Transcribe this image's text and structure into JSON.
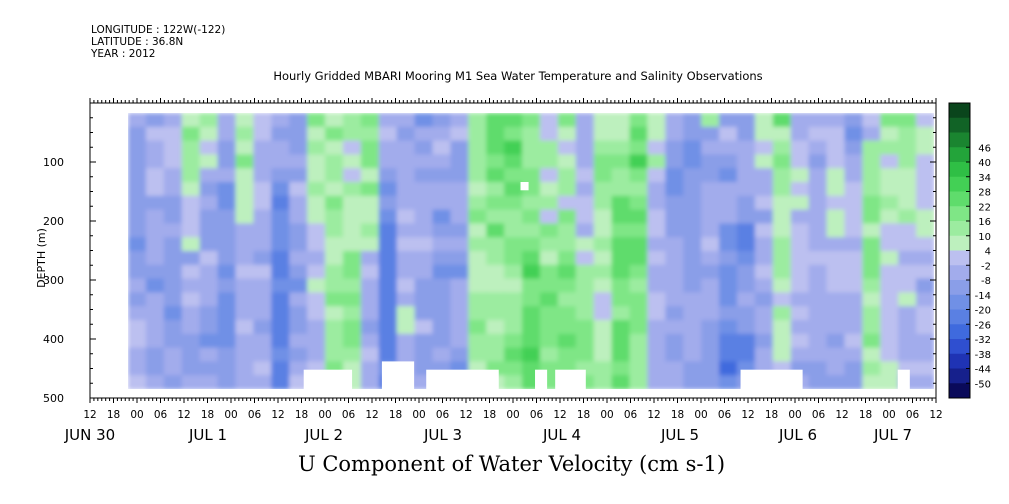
{
  "header": {
    "longitude": "LONGITUDE : 122W(-122)",
    "latitude": "LATITUDE : 36.8N",
    "year": "YEAR : 2012"
  },
  "chart_data": {
    "type": "heatmap",
    "title": "Hourly Gridded MBARI Mooring M1 Sea Water Temperature and Salinity Observations",
    "xlabel": "U Component of Water Velocity (cm s-1)",
    "ylabel": "DEPTH (m)",
    "x_range": [
      "2012-06-30T12:00",
      "2012-07-07T12:00"
    ],
    "y_range": [
      0,
      500
    ],
    "y_inverted": true,
    "y_ticks": [
      100,
      200,
      300,
      400,
      500
    ],
    "x_hour_ticks": [
      "12",
      "18",
      "00",
      "06",
      "12",
      "18",
      "00",
      "06",
      "12",
      "18",
      "00",
      "06",
      "12",
      "18",
      "00",
      "06",
      "12",
      "18",
      "00",
      "06",
      "12",
      "18",
      "00",
      "06",
      "12",
      "18",
      "00",
      "06",
      "12",
      "18",
      "00",
      "06",
      "12",
      "18",
      "00",
      "06",
      "12"
    ],
    "x_day_labels": [
      "JUN 30",
      "JUL 1",
      "JUL 2",
      "JUL 3",
      "JUL 4",
      "JUL 5",
      "JUL 6",
      "JUL 7"
    ],
    "colorbar": {
      "levels": [
        -50,
        -44,
        -38,
        -32,
        -26,
        -20,
        -14,
        -8,
        -2,
        4,
        10,
        16,
        22,
        28,
        34,
        40,
        46
      ],
      "colors": [
        "#0a0a5a",
        "#16208c",
        "#1f33b4",
        "#2f4fd0",
        "#3f6ade",
        "#5a80e3",
        "#7090e6",
        "#8a9ee8",
        "#a2acec",
        "#bcc0f0",
        "#bdf0be",
        "#9ceca0",
        "#7fe686",
        "#5fdc6c",
        "#43d055",
        "#2fbf45",
        "#23a43a",
        "#1a8530",
        "#116326",
        "#0a451c"
      ]
    },
    "series": [
      {
        "values": [
          [
            -3,
            -11,
            -3,
            5,
            15,
            -8,
            8,
            1,
            -7,
            -11,
            17,
            9,
            14,
            19,
            -3,
            -7,
            -17,
            -9,
            -7,
            11,
            22,
            24,
            20,
            3,
            16,
            -5,
            7,
            9,
            19,
            7,
            -5,
            -13,
            14,
            -10,
            -12,
            7,
            25,
            -3,
            -7,
            -5,
            -11,
            3,
            17,
            21,
            3
          ],
          [
            -13,
            -1,
            2,
            19,
            4,
            -5,
            14,
            3,
            -14,
            -10,
            9,
            17,
            14,
            10,
            -2,
            -10,
            -4,
            -7,
            -1,
            10,
            23,
            18,
            11,
            3,
            8,
            -3,
            8,
            6,
            23,
            5,
            -6,
            -13,
            -14,
            -1,
            -14,
            6,
            8,
            -7,
            0,
            1,
            -17,
            -3,
            4,
            14,
            6
          ],
          [
            -13,
            -7,
            2,
            11,
            -2,
            -11,
            4,
            -6,
            -8,
            -14,
            12,
            4,
            3,
            19,
            -5,
            -5,
            -11,
            2,
            -10,
            11,
            25,
            29,
            12,
            11,
            3,
            -6,
            11,
            11,
            17,
            3,
            -10,
            -20,
            -6,
            -7,
            -5,
            3,
            14,
            3,
            -8,
            3,
            -11,
            10,
            15,
            13,
            6
          ],
          [
            -12,
            -5,
            2,
            13,
            8,
            -12,
            18,
            -6,
            -4,
            -5,
            7,
            11,
            5,
            16,
            -6,
            -8,
            -7,
            -5,
            -13,
            14,
            18,
            26,
            12,
            12,
            4,
            -4,
            16,
            18,
            30,
            11,
            -13,
            -18,
            -14,
            -12,
            -3,
            6,
            16,
            -1,
            -13,
            3,
            -8,
            14,
            2,
            11,
            1
          ],
          [
            -14,
            -2,
            -7,
            12,
            -7,
            -8,
            5,
            -7,
            -11,
            -10,
            6,
            10,
            1,
            7,
            -11,
            -6,
            -13,
            -10,
            -10,
            14,
            25,
            18,
            18,
            3,
            11,
            2,
            21,
            15,
            19,
            -1,
            -18,
            -13,
            -9,
            -18,
            -8,
            -5,
            15,
            6,
            -8,
            6,
            -6,
            15,
            9,
            9,
            -1
          ],
          [
            -13,
            0,
            -6,
            5,
            -10,
            -17,
            5,
            -1,
            -19,
            -2,
            11,
            4,
            13,
            18,
            -17,
            -8,
            -8,
            -4,
            -4,
            8,
            13,
            22,
            20,
            8,
            12,
            -4,
            10,
            12,
            14,
            -8,
            -16,
            -13,
            -7,
            -8,
            -5,
            -4,
            10,
            1,
            -7,
            9,
            1,
            11,
            4,
            4,
            3
          ],
          [
            -14,
            -11,
            -11,
            3,
            -6,
            -16,
            7,
            3,
            -23,
            -6,
            9,
            17,
            9,
            4,
            -14,
            -5,
            -4,
            -5,
            -5,
            11,
            19,
            17,
            13,
            14,
            3,
            1,
            15,
            22,
            21,
            -5,
            -12,
            -14,
            -3,
            -3,
            -9,
            0,
            5,
            7,
            -3,
            3,
            -2,
            17,
            11,
            8,
            3
          ],
          [
            -12,
            -3,
            -9,
            3,
            -11,
            -12,
            6,
            -4,
            -20,
            -5,
            6,
            11,
            7,
            4,
            -15,
            -1,
            -4,
            -16,
            -6,
            19,
            13,
            12,
            19,
            3,
            16,
            3,
            9,
            23,
            25,
            1,
            -9,
            -10,
            -4,
            -8,
            -14,
            -11,
            9,
            -7,
            -8,
            5,
            -1,
            21,
            7,
            10,
            7
          ],
          [
            -13,
            -3,
            -8,
            0,
            -9,
            -13,
            -3,
            -3,
            -17,
            -9,
            3,
            14,
            7,
            10,
            -21,
            -5,
            -7,
            -14,
            -14,
            9,
            22,
            15,
            15,
            16,
            15,
            -3,
            8,
            18,
            20,
            -1,
            -10,
            -10,
            -3,
            -15,
            -21,
            -1,
            6,
            -1,
            -5,
            9,
            -1,
            9,
            -1,
            3,
            7
          ],
          [
            -15,
            -8,
            -9,
            7,
            -11,
            -11,
            -7,
            -6,
            -18,
            -14,
            2,
            9,
            5,
            4,
            -24,
            -2,
            2,
            -8,
            -4,
            15,
            11,
            20,
            17,
            11,
            13,
            5,
            12,
            24,
            25,
            -4,
            -4,
            -12,
            2,
            -17,
            -22,
            -4,
            12,
            3,
            -8,
            -3,
            -5,
            19,
            -2,
            0,
            -1
          ],
          [
            -9,
            -7,
            -11,
            -10,
            -2,
            -14,
            -4,
            -11,
            -24,
            -8,
            -6,
            9,
            16,
            -3,
            -25,
            -8,
            -5,
            -11,
            -12,
            8,
            13,
            19,
            26,
            7,
            18,
            3,
            6,
            27,
            25,
            -2,
            -7,
            -11,
            -4,
            -11,
            -17,
            -5,
            11,
            2,
            -2,
            -2,
            -2,
            17,
            5,
            -6,
            -5
          ],
          [
            -9,
            -13,
            -13,
            0,
            -8,
            -19,
            1,
            1,
            -25,
            -11,
            2,
            12,
            18,
            0,
            -26,
            -8,
            -4,
            -19,
            -15,
            4,
            7,
            12,
            28,
            18,
            24,
            10,
            12,
            23,
            19,
            -3,
            -7,
            -11,
            -10,
            -16,
            -10,
            0,
            14,
            2,
            -4,
            0,
            1,
            16,
            3,
            0,
            -2
          ],
          [
            -5,
            -17,
            -9,
            -8,
            -8,
            -10,
            -3,
            -4,
            -19,
            -15,
            5,
            10,
            11,
            -8,
            -24,
            -2,
            -10,
            -9,
            -7,
            8,
            8,
            7,
            20,
            18,
            17,
            14,
            6,
            18,
            14,
            -3,
            -8,
            -10,
            -8,
            -17,
            -14,
            -3,
            9,
            1,
            -3,
            -1,
            -1,
            10,
            2,
            -1,
            -11
          ],
          [
            -9,
            -8,
            -12,
            -2,
            -7,
            -17,
            -7,
            -4,
            -22,
            -5,
            1,
            18,
            17,
            -8,
            -24,
            -3,
            -9,
            -10,
            -8,
            14,
            13,
            15,
            19,
            23,
            12,
            10,
            3,
            16,
            19,
            0,
            -6,
            -7,
            -7,
            -20,
            -8,
            -10,
            3,
            -5,
            -5,
            -3,
            -7,
            7,
            -2,
            5,
            -8
          ],
          [
            -3,
            -5,
            -15,
            -8,
            -9,
            -18,
            -5,
            -6,
            -25,
            -13,
            2,
            7,
            12,
            -6,
            -21,
            4,
            -12,
            -13,
            -8,
            15,
            11,
            15,
            25,
            21,
            21,
            13,
            0,
            14,
            16,
            -2,
            -9,
            -8,
            -5,
            -14,
            -13,
            -5,
            11,
            0,
            -3,
            -6,
            -3,
            12,
            0,
            -5,
            -2
          ],
          [
            -1,
            -8,
            -14,
            -4,
            -9,
            -15,
            -2,
            -11,
            -23,
            -14,
            -4,
            14,
            17,
            -9,
            -22,
            5,
            -1,
            -13,
            -6,
            17,
            7,
            15,
            25,
            16,
            19,
            17,
            8,
            23,
            19,
            -3,
            -7,
            -7,
            -11,
            -16,
            -10,
            -4,
            8,
            -4,
            -4,
            -6,
            -4,
            11,
            2,
            -7,
            -1
          ],
          [
            2,
            -5,
            -14,
            -9,
            -15,
            -18,
            -3,
            -6,
            -22,
            -6,
            -3,
            12,
            17,
            -5,
            -22,
            -4,
            -10,
            -13,
            -6,
            14,
            13,
            16,
            24,
            18,
            25,
            18,
            8,
            24,
            13,
            -5,
            -11,
            -8,
            -13,
            -25,
            -21,
            -9,
            5,
            -1,
            -6,
            -11,
            0,
            17,
            1,
            -6,
            -3
          ],
          [
            -3,
            -10,
            -7,
            -9,
            -8,
            -10,
            -6,
            -5,
            -20,
            -9,
            -3,
            11,
            15,
            -2,
            -23,
            -4,
            -10,
            -8,
            -12,
            15,
            12,
            22,
            28,
            14,
            19,
            17,
            6,
            22,
            12,
            -3,
            -9,
            -7,
            -11,
            -26,
            -21,
            -5,
            6,
            -4,
            -7,
            -3,
            -3,
            8,
            2,
            -5,
            -5
          ],
          [
            -3,
            -9,
            -8,
            -9,
            -9,
            -12,
            -5,
            -1,
            -26,
            -8,
            -2,
            16,
            9,
            -7,
            -20,
            -5,
            -10,
            -13,
            -16,
            9,
            16,
            16,
            25,
            19,
            20,
            13,
            10,
            19,
            14,
            -5,
            -7,
            -10,
            -12,
            -28,
            -16,
            -3,
            1,
            -10,
            -11,
            -8,
            -12,
            14,
            6,
            -2,
            -1
          ],
          [
            -2,
            -7,
            -10,
            -4,
            -8,
            -14,
            -5,
            -6,
            -22,
            -2,
            -2,
            10,
            5,
            -5,
            -26,
            -3,
            -5,
            -11,
            -9,
            11,
            6,
            11,
            22,
            17,
            21,
            16,
            13,
            22,
            12,
            -8,
            -5,
            -14,
            -14,
            -19,
            -14,
            -6,
            -3,
            -7,
            -9,
            -11,
            -14,
            9,
            9,
            -6,
            -6
          ]
        ]
      }
    ],
    "masked_regions": [
      [
        0.315,
        0.355,
        0.9,
        1.0
      ],
      [
        0.218,
        0.278,
        0.93,
        1.0
      ],
      [
        0.37,
        0.46,
        0.93,
        1.0
      ],
      [
        0.505,
        0.52,
        0.93,
        1.0
      ],
      [
        0.53,
        0.568,
        0.93,
        1.0
      ],
      [
        0.76,
        0.837,
        0.93,
        1.0
      ],
      [
        0.955,
        0.97,
        0.93,
        1.0
      ],
      [
        0.487,
        0.497,
        0.25,
        0.28
      ]
    ]
  }
}
